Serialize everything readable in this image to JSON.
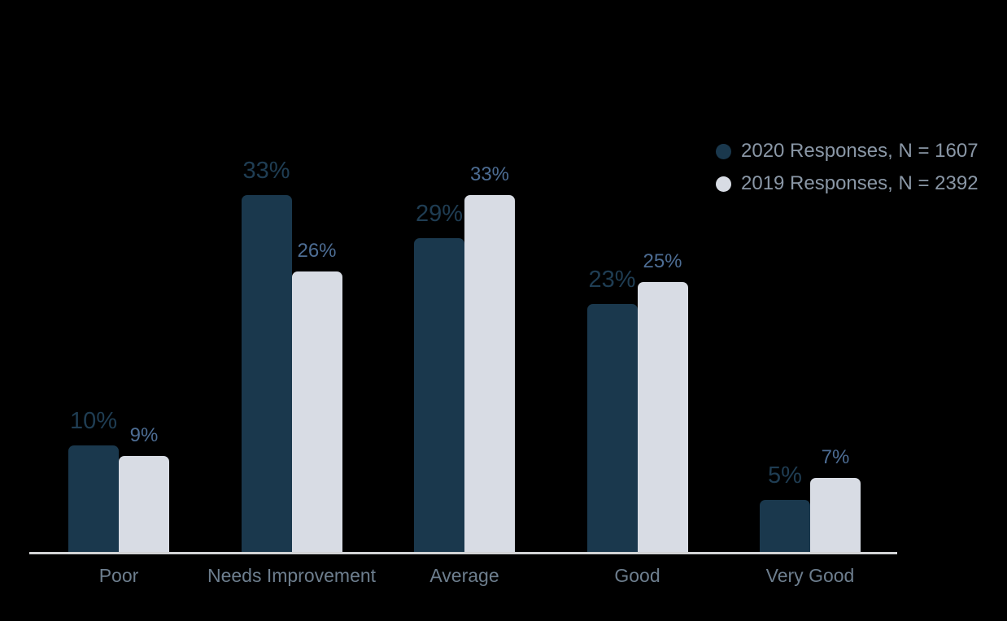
{
  "chart_data": {
    "type": "bar",
    "title": "",
    "xlabel": "",
    "ylabel": "",
    "categories": [
      "Poor",
      "Needs Improvement",
      "Average",
      "Good",
      "Very Good"
    ],
    "series": [
      {
        "name": "2020 Responses, N = 1607",
        "values": [
          10,
          33,
          29,
          23,
          5
        ],
        "color": "#1a384d",
        "label_color": "#1f3d53"
      },
      {
        "name": "2019 Responses, N = 2392",
        "values": [
          9,
          26,
          33,
          25,
          7
        ],
        "color": "#d8dce4",
        "label_color": "#4d6d94"
      }
    ],
    "value_suffix": "%",
    "ylim": [
      0,
      50
    ],
    "grid": false,
    "legend_position": "top-right",
    "colors": {
      "background": "#000000",
      "axis_line": "#d2d3d5",
      "category_label": "#6d7e8e",
      "legend_text": "#8a97a6"
    }
  }
}
